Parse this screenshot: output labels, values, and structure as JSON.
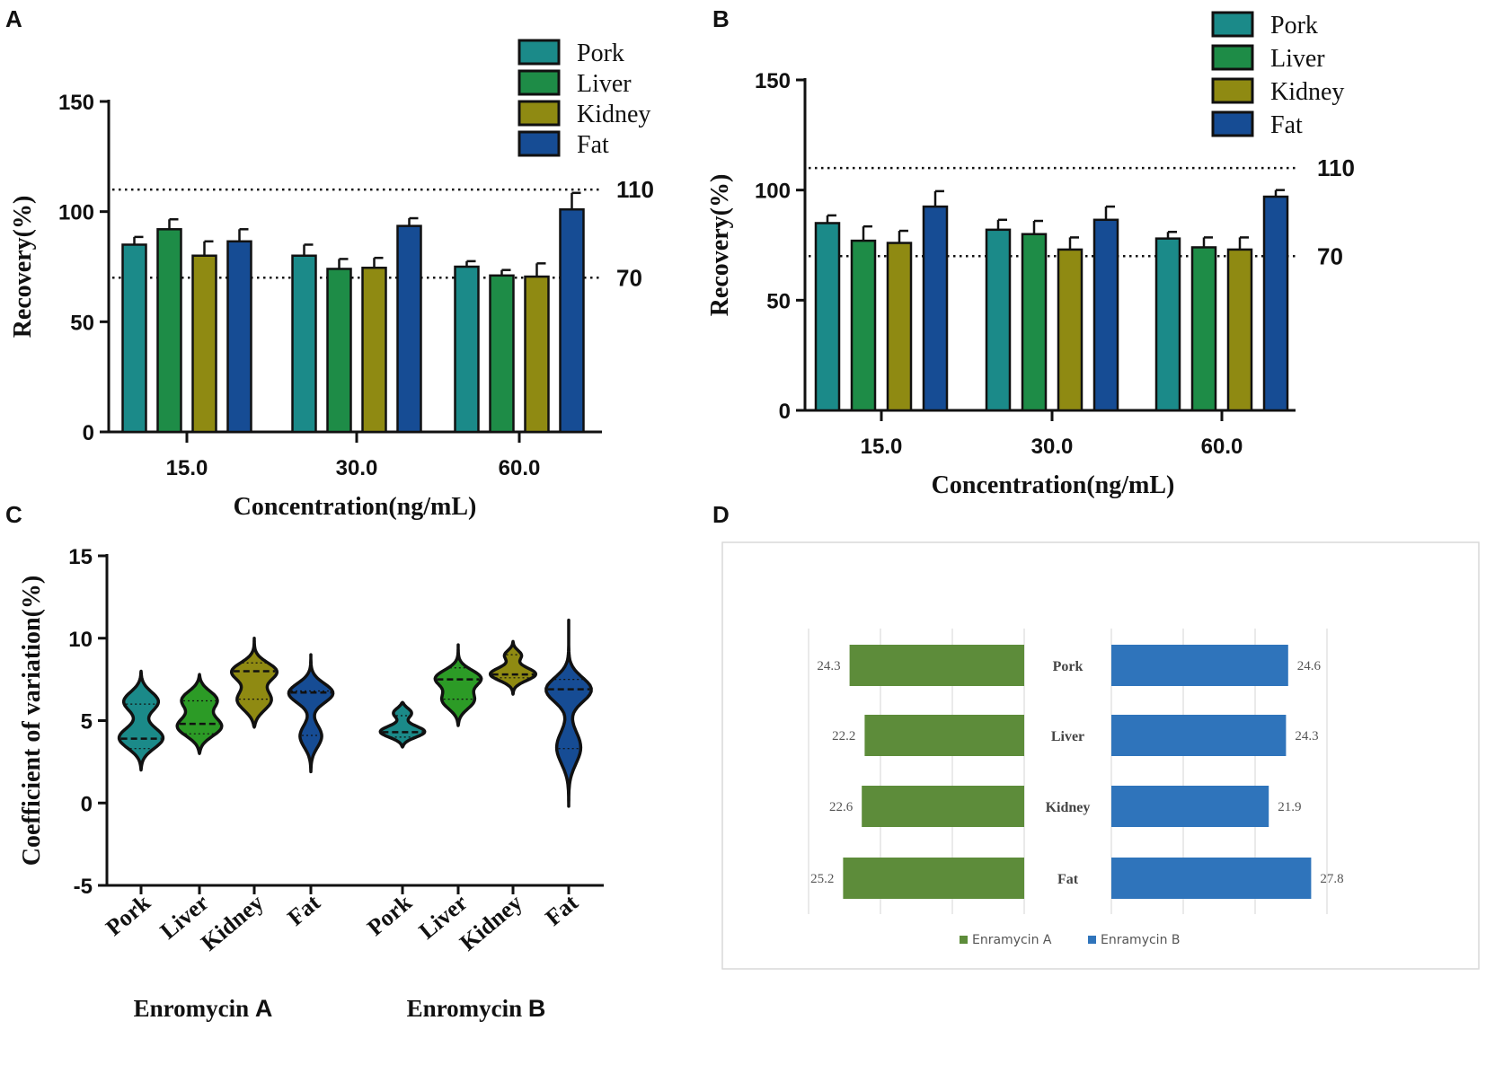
{
  "colors": {
    "Pork": "#1b8a89",
    "Liver": "#1e8c47",
    "Kidney": "#8f8a12",
    "Fat": "#164c94",
    "violin_Liver": "#2c9b26",
    "enramycin_a": "#5d8c3a",
    "enramycin_b": "#2f74bb"
  },
  "chart_data": [
    {
      "panel": "A",
      "type": "bar",
      "categories": [
        "15.0",
        "30.0",
        "60.0"
      ],
      "series": [
        {
          "name": "Pork",
          "values": [
            85,
            80,
            75
          ],
          "errors": [
            3.5,
            5,
            2.5
          ]
        },
        {
          "name": "Liver",
          "values": [
            92,
            74,
            71
          ],
          "errors": [
            4.5,
            4.5,
            2.5
          ]
        },
        {
          "name": "Kidney",
          "values": [
            80,
            74.5,
            70.5
          ],
          "errors": [
            6.5,
            4.5,
            6
          ]
        },
        {
          "name": "Fat",
          "values": [
            86.5,
            93.5,
            101
          ],
          "errors": [
            5.5,
            3.5,
            7.5
          ]
        }
      ],
      "xlabel": "Concentration(ng/mL)",
      "ylabel": "Recovery(%)",
      "ylim": [
        0,
        150
      ],
      "yticks": [
        "0",
        "50",
        "100",
        "150"
      ],
      "reference_lines": [
        {
          "value": 110,
          "label": "110"
        },
        {
          "value": 70,
          "label": "70"
        }
      ],
      "legend": [
        "Pork",
        "Liver",
        "Kidney",
        "Fat"
      ],
      "legend_position": "top-right"
    },
    {
      "panel": "B",
      "type": "bar",
      "categories": [
        "15.0",
        "30.0",
        "60.0"
      ],
      "series": [
        {
          "name": "Pork",
          "values": [
            85,
            82,
            78
          ],
          "errors": [
            3.5,
            4.5,
            3
          ]
        },
        {
          "name": "Liver",
          "values": [
            77,
            80,
            74
          ],
          "errors": [
            6.5,
            6,
            4.5
          ]
        },
        {
          "name": "Kidney",
          "values": [
            76,
            73,
            73
          ],
          "errors": [
            5.5,
            5.5,
            5.5
          ]
        },
        {
          "name": "Fat",
          "values": [
            92.5,
            86.5,
            97
          ],
          "errors": [
            7,
            6,
            3
          ]
        }
      ],
      "xlabel": "Concentration(ng/mL)",
      "ylabel": "Recovery(%)",
      "ylim": [
        0,
        150
      ],
      "yticks": [
        "0",
        "50",
        "100",
        "150"
      ],
      "reference_lines": [
        {
          "value": 110,
          "label": "110"
        },
        {
          "value": 70,
          "label": "70"
        }
      ],
      "legend": [
        "Pork",
        "Liver",
        "Kidney",
        "Fat"
      ],
      "legend_position": "top-right"
    },
    {
      "panel": "C",
      "type": "violin",
      "ylabel": "Coefficient of variation(%)",
      "ylim": [
        -5,
        15
      ],
      "yticks": [
        "-5",
        "0",
        "5",
        "10",
        "15"
      ],
      "groups": [
        {
          "label_main": "Enromycin ",
          "label_letter": "A",
          "violins": [
            {
              "name": "Pork",
              "min": 2,
              "max": 8,
              "modes": [
                [
                  3.9,
                  1.0
                ],
                [
                  6.2,
                  0.8
                ]
              ],
              "sigma": [
                0.65,
                0.6
              ],
              "median": 3.9,
              "q1": 3.3,
              "q3": 6.0
            },
            {
              "name": "Liver",
              "min": 3,
              "max": 7.8,
              "modes": [
                [
                  4.6,
                  1.0
                ],
                [
                  6.3,
                  0.8
                ]
              ],
              "sigma": [
                0.6,
                0.55
              ],
              "median": 4.8,
              "q1": 4.2,
              "q3": 6.2
            },
            {
              "name": "Kidney",
              "min": 4.6,
              "max": 10,
              "modes": [
                [
                  6.2,
                  0.8
                ],
                [
                  8.0,
                  1.0
                ]
              ],
              "sigma": [
                0.65,
                0.55
              ],
              "median": 8.0,
              "q1": 6.3,
              "q3": 8.5
            },
            {
              "name": "Fat",
              "min": 1.9,
              "max": 9,
              "modes": [
                [
                  4.0,
                  0.5
                ],
                [
                  6.7,
                  1.0
                ]
              ],
              "sigma": [
                0.7,
                0.6
              ],
              "median": 6.7,
              "q1": 4.1,
              "q3": 6.8
            }
          ]
        },
        {
          "label_main": "Enromycin ",
          "label_letter": "B",
          "violins": [
            {
              "name": "Pork",
              "min": 3.4,
              "max": 6.1,
              "modes": [
                [
                  4.3,
                  1.0
                ],
                [
                  5.5,
                  0.45
                ]
              ],
              "sigma": [
                0.35,
                0.3
              ],
              "median": 4.3,
              "q1": 4.0,
              "q3": 5.3
            },
            {
              "name": "Liver",
              "min": 4.7,
              "max": 9.6,
              "modes": [
                [
                  6.2,
                  0.75
                ],
                [
                  7.6,
                  1.0
                ]
              ],
              "sigma": [
                0.55,
                0.5
              ],
              "median": 7.5,
              "q1": 6.3,
              "q3": 8.2
            },
            {
              "name": "Kidney",
              "min": 6.6,
              "max": 9.8,
              "modes": [
                [
                  7.8,
                  1.0
                ],
                [
                  9.0,
                  0.4
                ]
              ],
              "sigma": [
                0.4,
                0.3
              ],
              "median": 7.8,
              "q1": 7.6,
              "q3": 9.0
            },
            {
              "name": "Fat",
              "min": -0.2,
              "max": 11.1,
              "modes": [
                [
                  3.3,
                  0.55
                ],
                [
                  6.9,
                  1.0
                ]
              ],
              "sigma": [
                1.0,
                0.75
              ],
              "median": 6.9,
              "q1": 3.3,
              "q3": 7.5
            }
          ]
        }
      ]
    },
    {
      "panel": "D",
      "type": "bar",
      "orientation": "horizontal-butterfly",
      "categories": [
        "Pork",
        "Liver",
        "Kidney",
        "Fat"
      ],
      "series": [
        {
          "name": "Enramycin A",
          "values": [
            24.3,
            22.2,
            22.6,
            25.2
          ],
          "labels": [
            "24.3",
            "22.2",
            "22.6",
            "25.2"
          ]
        },
        {
          "name": "Enramycin B",
          "values": [
            24.6,
            24.3,
            21.9,
            27.8
          ],
          "labels": [
            "24.6",
            "24.3",
            "21.9",
            "27.8"
          ]
        }
      ],
      "xlim": [
        0,
        30
      ],
      "legend": [
        "Enramycin A",
        "Enramycin B"
      ],
      "legend_position": "bottom"
    }
  ]
}
